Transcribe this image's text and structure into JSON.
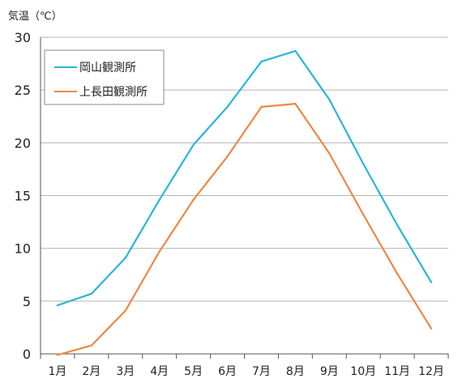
{
  "chart_data": {
    "type": "line",
    "ylabel": "気温（℃）",
    "ylim": [
      0,
      30
    ],
    "yticks": [
      0,
      5,
      10,
      15,
      20,
      25,
      30
    ],
    "grid": true,
    "legend_position": "top-left",
    "categories": [
      "1月",
      "2月",
      "3月",
      "4月",
      "5月",
      "6月",
      "7月",
      "8月",
      "9月",
      "10月",
      "11月",
      "12月"
    ],
    "series": [
      {
        "name": "岡山観測所",
        "color": "#2BB5D8",
        "values": [
          4.6,
          5.7,
          9.1,
          14.6,
          19.8,
          23.4,
          27.7,
          28.7,
          24.1,
          18.0,
          12.2,
          6.8
        ]
      },
      {
        "name": "上長田観測所",
        "color": "#EE8844",
        "values": [
          -0.1,
          0.8,
          4.1,
          9.7,
          14.6,
          18.7,
          23.4,
          23.7,
          19.0,
          13.2,
          7.6,
          2.4
        ]
      }
    ]
  }
}
